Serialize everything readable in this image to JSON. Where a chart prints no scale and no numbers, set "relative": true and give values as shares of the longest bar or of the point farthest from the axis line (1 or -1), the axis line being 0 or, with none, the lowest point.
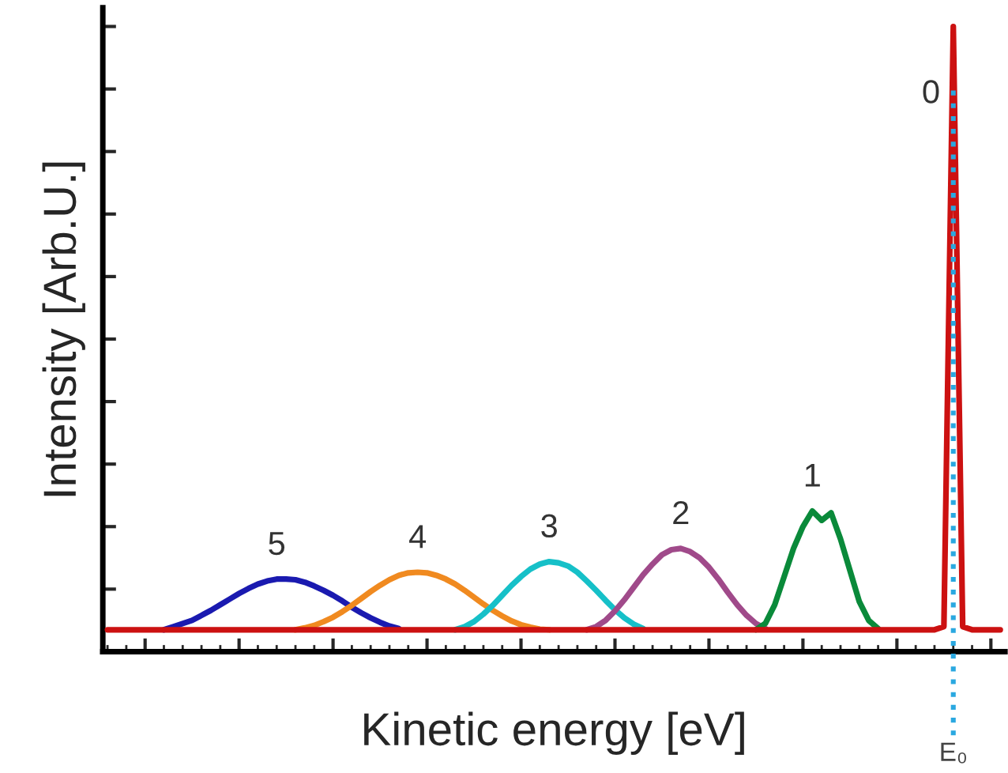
{
  "chart_data": {
    "type": "line",
    "relative": true,
    "xlabel": "Kinetic energy [eV]",
    "ylabel": "Intensity [Arb.U.]",
    "categories": [
      null,
      null,
      null,
      null,
      null,
      null,
      null,
      null,
      null,
      null,
      null,
      null,
      null,
      null,
      null,
      null,
      null,
      null,
      null,
      null,
      null,
      null,
      null,
      null,
      null,
      null,
      null,
      null,
      null,
      null,
      null,
      null,
      null,
      null,
      null,
      null,
      null,
      null,
      null,
      null,
      null,
      null,
      null,
      null,
      null,
      null,
      null,
      null,
      null,
      null,
      null,
      null,
      null,
      null,
      null,
      null,
      null,
      null,
      null,
      null,
      null,
      null,
      null,
      null,
      null,
      null,
      null,
      null,
      null,
      null,
      null,
      null,
      null,
      null,
      null,
      null,
      null,
      null,
      null,
      null,
      null,
      null,
      null,
      null,
      null,
      null,
      null,
      null,
      null,
      null,
      null,
      null,
      null,
      null,
      null,
      null
    ],
    "tick_labels": false,
    "grid": false,
    "legend": false,
    "marker": "none",
    "line_style": "solid",
    "annotations": [
      "E₀"
    ],
    "series": [
      {
        "name": "5",
        "color": "#1a1ab0",
        "values": [
          null,
          null,
          null,
          null,
          null,
          null,
          0.035,
          0.04,
          0.045,
          0.05,
          0.058,
          0.066,
          0.075,
          0.084,
          0.093,
          0.101,
          0.108,
          0.113,
          0.116,
          0.116,
          0.115,
          0.111,
          0.105,
          0.098,
          0.09,
          0.081,
          0.071,
          0.062,
          0.054,
          0.047,
          0.041,
          0.037,
          null,
          null,
          null,
          null,
          null,
          null,
          null,
          null,
          null,
          null,
          null,
          null,
          null,
          null,
          null,
          null,
          null,
          null,
          null,
          null,
          null,
          null,
          null,
          null,
          null,
          null,
          null,
          null,
          null,
          null,
          null,
          null,
          null,
          null,
          null,
          null,
          null,
          null,
          null,
          null,
          null,
          null,
          null,
          null,
          null,
          null,
          null,
          null,
          null,
          null,
          null,
          null,
          null,
          null,
          null,
          null,
          null,
          null,
          null,
          null,
          null,
          null,
          null,
          null
        ]
      },
      {
        "name": "4",
        "color": "#f08a20",
        "values": [
          null,
          null,
          null,
          null,
          null,
          null,
          null,
          null,
          null,
          null,
          null,
          null,
          null,
          null,
          null,
          null,
          null,
          null,
          null,
          null,
          0.035,
          0.038,
          0.042,
          0.048,
          0.055,
          0.064,
          0.074,
          0.085,
          0.096,
          0.106,
          0.115,
          0.122,
          0.126,
          0.127,
          0.126,
          0.122,
          0.116,
          0.108,
          0.098,
          0.087,
          0.076,
          0.066,
          0.057,
          0.049,
          0.043,
          0.039,
          0.036,
          0.035,
          null,
          null,
          null,
          null,
          null,
          null,
          null,
          null,
          null,
          null,
          null,
          null,
          null,
          null,
          null,
          null,
          null,
          null,
          null,
          null,
          null,
          null,
          null,
          null,
          null,
          null,
          null,
          null,
          null,
          null,
          null,
          null,
          null,
          null,
          null,
          null,
          null,
          null,
          null,
          null,
          null,
          null,
          null,
          null,
          null,
          null,
          null,
          null
        ]
      },
      {
        "name": "3",
        "color": "#16c0c8",
        "values": [
          null,
          null,
          null,
          null,
          null,
          null,
          null,
          null,
          null,
          null,
          null,
          null,
          null,
          null,
          null,
          null,
          null,
          null,
          null,
          null,
          null,
          null,
          null,
          null,
          null,
          null,
          null,
          null,
          null,
          null,
          null,
          null,
          null,
          null,
          null,
          null,
          null,
          0.035,
          0.04,
          0.048,
          0.06,
          0.074,
          0.09,
          0.106,
          0.12,
          0.132,
          0.14,
          0.144,
          0.142,
          0.137,
          0.127,
          0.113,
          0.098,
          0.082,
          0.067,
          0.054,
          0.044,
          0.037,
          null,
          null,
          null,
          null,
          null,
          null,
          null,
          null,
          null,
          null,
          null,
          null,
          null,
          null,
          null,
          null,
          null,
          null,
          null,
          null,
          null,
          null,
          null,
          null,
          null,
          null,
          null,
          null,
          null,
          null,
          null,
          null,
          null,
          null,
          null,
          null,
          null,
          null
        ]
      },
      {
        "name": "2",
        "color": "#a04a8a",
        "values": [
          null,
          null,
          null,
          null,
          null,
          null,
          null,
          null,
          null,
          null,
          null,
          null,
          null,
          null,
          null,
          null,
          null,
          null,
          null,
          null,
          null,
          null,
          null,
          null,
          null,
          null,
          null,
          null,
          null,
          null,
          null,
          null,
          null,
          null,
          null,
          null,
          null,
          null,
          null,
          null,
          null,
          null,
          null,
          null,
          null,
          null,
          null,
          null,
          null,
          null,
          null,
          0.035,
          0.04,
          0.05,
          0.065,
          0.083,
          0.103,
          0.123,
          0.14,
          0.155,
          0.163,
          0.165,
          0.16,
          0.15,
          0.135,
          0.116,
          0.095,
          0.075,
          0.058,
          0.045,
          0.037,
          null,
          null,
          null,
          null,
          null,
          null,
          null,
          null,
          null,
          null,
          null,
          null,
          null,
          null,
          null,
          null,
          null,
          null,
          null,
          null,
          null,
          null,
          null,
          null,
          null
        ]
      },
      {
        "name": "1",
        "color": "#0a8a3a",
        "values": [
          null,
          null,
          null,
          null,
          null,
          null,
          null,
          null,
          null,
          null,
          null,
          null,
          null,
          null,
          null,
          null,
          null,
          null,
          null,
          null,
          null,
          null,
          null,
          null,
          null,
          null,
          null,
          null,
          null,
          null,
          null,
          null,
          null,
          null,
          null,
          null,
          null,
          null,
          null,
          null,
          null,
          null,
          null,
          null,
          null,
          null,
          null,
          null,
          null,
          null,
          null,
          null,
          null,
          null,
          null,
          null,
          null,
          null,
          null,
          null,
          null,
          null,
          null,
          null,
          null,
          null,
          null,
          null,
          null,
          0.035,
          0.045,
          0.075,
          0.12,
          0.165,
          0.2,
          0.225,
          0.21,
          0.222,
          0.18,
          0.13,
          0.08,
          0.05,
          0.037,
          null,
          null,
          null,
          null,
          null,
          null,
          null,
          null,
          null,
          null,
          null,
          null,
          null
        ]
      },
      {
        "name": "0",
        "color": "#cc1111",
        "values": [
          0.035,
          0.035,
          0.035,
          0.035,
          0.035,
          0.035,
          0.035,
          0.035,
          0.035,
          0.035,
          0.035,
          0.035,
          0.035,
          0.035,
          0.035,
          0.035,
          0.035,
          0.035,
          0.035,
          0.035,
          0.035,
          0.035,
          0.035,
          0.035,
          0.035,
          0.035,
          0.035,
          0.035,
          0.035,
          0.035,
          0.035,
          0.035,
          0.035,
          0.035,
          0.035,
          0.035,
          0.035,
          0.035,
          0.035,
          0.035,
          0.035,
          0.035,
          0.035,
          0.035,
          0.035,
          0.035,
          0.035,
          0.035,
          0.035,
          0.035,
          0.035,
          0.035,
          0.035,
          0.035,
          0.035,
          0.035,
          0.035,
          0.035,
          0.035,
          0.035,
          0.035,
          0.035,
          0.035,
          0.035,
          0.035,
          0.035,
          0.035,
          0.035,
          0.035,
          0.035,
          0.035,
          0.035,
          0.035,
          0.035,
          0.035,
          0.035,
          0.035,
          0.035,
          0.035,
          0.035,
          0.035,
          0.035,
          0.035,
          0.035,
          0.035,
          0.035,
          0.035,
          0.035,
          0.035,
          0.04,
          1.0,
          0.04,
          0.035,
          0.035,
          0.035,
          0.035
        ]
      }
    ]
  }
}
